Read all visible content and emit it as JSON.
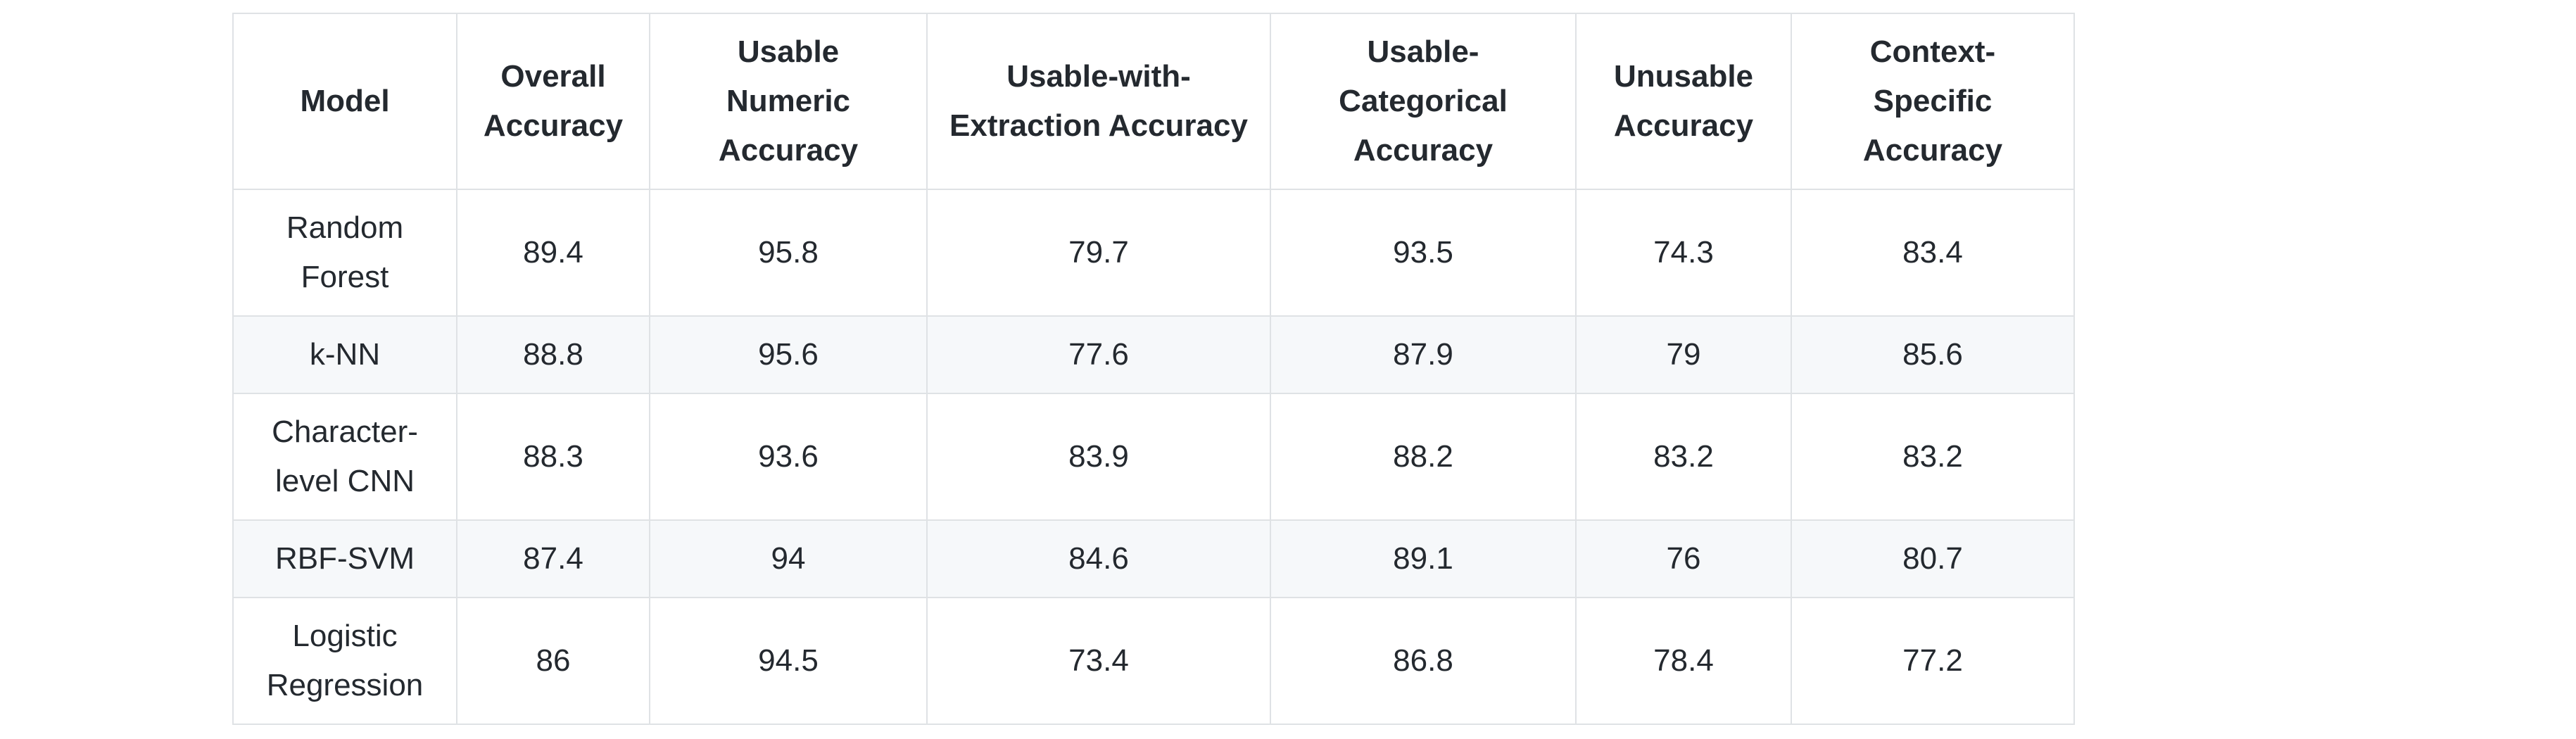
{
  "table": {
    "headers": [
      "Model",
      "Overall Accuracy",
      "Usable Numeric Accuracy",
      "Usable-with-Extraction Accuracy",
      "Usable-Categorical Accuracy",
      "Unusable Accuracy",
      "Context-Specific Accuracy"
    ],
    "rows": [
      [
        "Random Forest",
        "89.4",
        "95.8",
        "79.7",
        "93.5",
        "74.3",
        "83.4"
      ],
      [
        "k-NN",
        "88.8",
        "95.6",
        "77.6",
        "87.9",
        "79",
        "85.6"
      ],
      [
        "Character-level CNN",
        "88.3",
        "93.6",
        "83.9",
        "88.2",
        "83.2",
        "83.2"
      ],
      [
        "RBF-SVM",
        "87.4",
        "94",
        "84.6",
        "89.1",
        "76",
        "80.7"
      ],
      [
        "Logistic Regression",
        "86",
        "94.5",
        "73.4",
        "86.8",
        "78.4",
        "77.2"
      ]
    ]
  }
}
